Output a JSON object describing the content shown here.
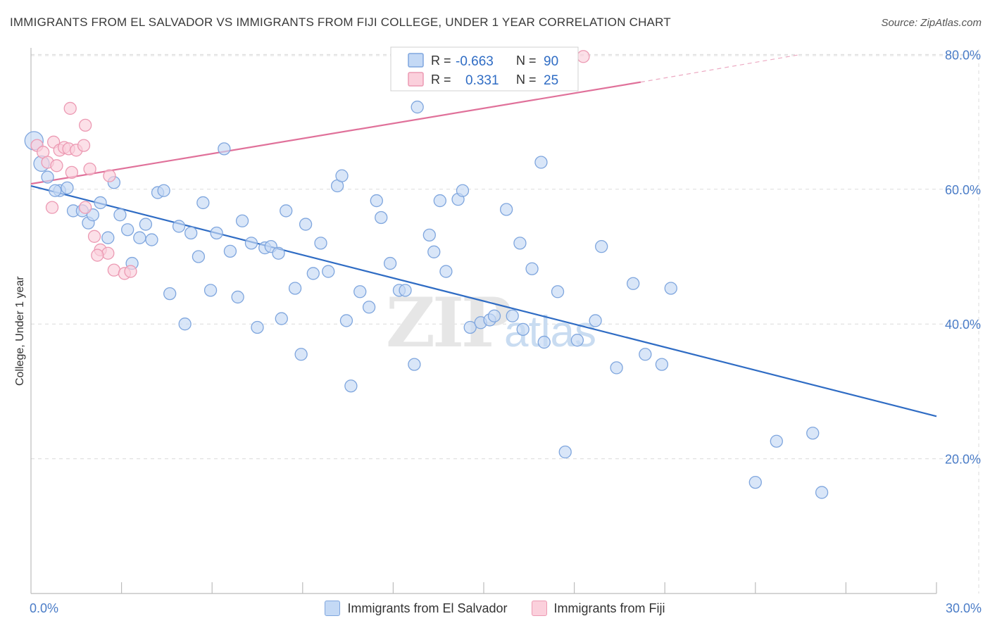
{
  "header": {
    "title": "IMMIGRANTS FROM EL SALVADOR VS IMMIGRANTS FROM FIJI COLLEGE, UNDER 1 YEAR CORRELATION CHART",
    "source": "Source: ZipAtlas.com"
  },
  "colors": {
    "blue": "#2f6cc4",
    "blue_fill": "#c4d9f5",
    "blue_stroke": "#7fa6de",
    "pink": "#e0719a",
    "pink_fill": "#fbd0dc",
    "pink_stroke": "#ec9ab3",
    "grid": "#dcdcdc",
    "tick_label": "#4a7cc7"
  },
  "legend": {
    "r_label": "R =",
    "n_label": "N =",
    "rows": [
      {
        "series": "Immigrants from El Salvador",
        "r": "-0.663",
        "n": "90"
      },
      {
        "series": "Immigrants from Fiji",
        "r": "0.331",
        "n": "25"
      }
    ]
  },
  "watermark": {
    "zip": "ZIP",
    "atlas": "atlas"
  },
  "chart_data": {
    "type": "scatter",
    "title": "IMMIGRANTS FROM EL SALVADOR VS IMMIGRANTS FROM FIJI COLLEGE, UNDER 1 YEAR CORRELATION CHART",
    "xlabel": "",
    "ylabel": "College, Under 1 year",
    "xlim": [
      0,
      30
    ],
    "ylim": [
      0,
      82
    ],
    "x_tick_labels": [
      {
        "value": 0,
        "label": "0.0%"
      },
      {
        "value": 30,
        "label": "30.0%"
      }
    ],
    "x_minor_ticks": [
      3,
      6,
      9,
      12,
      15,
      18,
      21,
      24,
      27
    ],
    "y_ticks": [
      {
        "value": 20,
        "label": "20.0%"
      },
      {
        "value": 40,
        "label": "40.0%"
      },
      {
        "value": 60,
        "label": "60.0%"
      },
      {
        "value": 80,
        "label": "80.0%"
      }
    ],
    "series": [
      {
        "name": "Immigrants from El Salvador",
        "color": "#2f6cc4",
        "trend": {
          "x0": 0,
          "y0": 60.5,
          "x1": 30,
          "y1": 26.3
        },
        "points": [
          [
            0.1,
            67.2
          ],
          [
            0.35,
            63.8
          ],
          [
            0.55,
            61.8
          ],
          [
            0.95,
            59.8
          ],
          [
            0.8,
            59.8
          ],
          [
            1.2,
            60.2
          ],
          [
            1.4,
            56.8
          ],
          [
            1.7,
            56.8
          ],
          [
            1.9,
            55.0
          ],
          [
            2.05,
            56.2
          ],
          [
            2.3,
            58.0
          ],
          [
            2.55,
            52.8
          ],
          [
            2.75,
            61.0
          ],
          [
            2.95,
            56.2
          ],
          [
            3.2,
            54.0
          ],
          [
            3.35,
            49.0
          ],
          [
            3.6,
            52.8
          ],
          [
            3.8,
            54.8
          ],
          [
            4.0,
            52.5
          ],
          [
            4.2,
            59.5
          ],
          [
            4.4,
            59.8
          ],
          [
            4.6,
            44.5
          ],
          [
            4.9,
            54.5
          ],
          [
            5.1,
            40.0
          ],
          [
            5.3,
            53.5
          ],
          [
            5.55,
            50.0
          ],
          [
            5.7,
            58.0
          ],
          [
            5.95,
            45.0
          ],
          [
            6.15,
            53.5
          ],
          [
            6.4,
            66.0
          ],
          [
            6.6,
            50.8
          ],
          [
            6.85,
            44.0
          ],
          [
            7.0,
            55.3
          ],
          [
            7.3,
            52.0
          ],
          [
            7.5,
            39.5
          ],
          [
            7.75,
            51.3
          ],
          [
            7.95,
            51.5
          ],
          [
            8.2,
            50.5
          ],
          [
            8.3,
            40.8
          ],
          [
            8.45,
            56.8
          ],
          [
            8.75,
            45.3
          ],
          [
            8.95,
            35.5
          ],
          [
            9.1,
            54.8
          ],
          [
            9.35,
            47.5
          ],
          [
            9.6,
            52.0
          ],
          [
            9.85,
            47.8
          ],
          [
            10.15,
            60.5
          ],
          [
            10.3,
            62.0
          ],
          [
            10.45,
            40.5
          ],
          [
            10.6,
            30.8
          ],
          [
            10.9,
            44.8
          ],
          [
            11.2,
            42.5
          ],
          [
            11.45,
            58.3
          ],
          [
            11.6,
            55.8
          ],
          [
            11.9,
            49.0
          ],
          [
            12.2,
            45.0
          ],
          [
            12.4,
            45.0
          ],
          [
            12.8,
            72.2
          ],
          [
            12.7,
            34.0
          ],
          [
            13.2,
            53.2
          ],
          [
            13.35,
            50.7
          ],
          [
            13.55,
            58.3
          ],
          [
            13.75,
            47.8
          ],
          [
            14.15,
            58.5
          ],
          [
            14.3,
            59.8
          ],
          [
            14.55,
            39.5
          ],
          [
            14.9,
            40.2
          ],
          [
            15.2,
            40.6
          ],
          [
            15.35,
            41.2
          ],
          [
            15.75,
            57.0
          ],
          [
            15.95,
            41.2
          ],
          [
            16.2,
            52.0
          ],
          [
            16.3,
            39.2
          ],
          [
            16.6,
            48.2
          ],
          [
            16.9,
            64.0
          ],
          [
            17.0,
            37.3
          ],
          [
            17.45,
            44.8
          ],
          [
            17.7,
            21.0
          ],
          [
            18.1,
            37.6
          ],
          [
            18.7,
            40.5
          ],
          [
            18.9,
            51.5
          ],
          [
            19.4,
            33.5
          ],
          [
            19.95,
            46.0
          ],
          [
            20.35,
            35.5
          ],
          [
            20.9,
            34.0
          ],
          [
            21.2,
            45.3
          ],
          [
            24.0,
            16.5
          ],
          [
            24.7,
            22.6
          ],
          [
            25.9,
            23.8
          ],
          [
            26.2,
            15.0
          ]
        ]
      },
      {
        "name": "Immigrants from Fiji",
        "color": "#e0719a",
        "trend": {
          "x0": 0,
          "y0": 60.8,
          "x1": 20.2,
          "y1": 75.9,
          "x2": 25.5,
          "y2": 80.0
        },
        "points": [
          [
            0.2,
            66.5
          ],
          [
            0.4,
            65.5
          ],
          [
            0.55,
            64.0
          ],
          [
            0.75,
            67.0
          ],
          [
            0.85,
            63.5
          ],
          [
            0.95,
            65.8
          ],
          [
            1.1,
            66.2
          ],
          [
            1.25,
            66.0
          ],
          [
            1.35,
            62.5
          ],
          [
            1.5,
            65.8
          ],
          [
            1.75,
            66.5
          ],
          [
            1.95,
            63.0
          ],
          [
            2.1,
            53.0
          ],
          [
            2.3,
            51.0
          ],
          [
            2.55,
            50.5
          ],
          [
            2.75,
            48.0
          ],
          [
            3.1,
            47.5
          ],
          [
            3.3,
            47.8
          ],
          [
            1.8,
            57.3
          ],
          [
            2.6,
            62.0
          ],
          [
            1.3,
            72.0
          ],
          [
            1.8,
            69.5
          ],
          [
            2.2,
            50.2
          ],
          [
            0.7,
            57.3
          ],
          [
            18.3,
            79.7
          ]
        ]
      }
    ]
  },
  "bottom_legend": {
    "items": [
      "Immigrants from El Salvador",
      "Immigrants from Fiji"
    ]
  }
}
